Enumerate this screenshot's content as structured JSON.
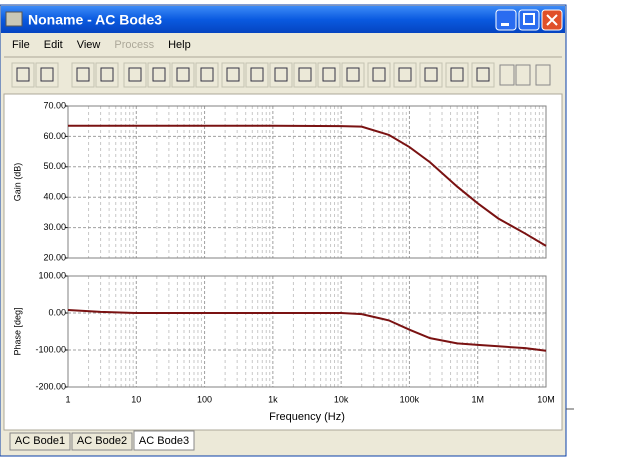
{
  "window": {
    "title": "Noname - AC Bode3"
  },
  "menu": [
    "File",
    "Edit",
    "View",
    "Process",
    "Help"
  ],
  "tabs": [
    "AC Bode1",
    "AC Bode2",
    "AC Bode3"
  ],
  "chart_data": [
    {
      "type": "line",
      "ylabel": "Gain (dB)",
      "xscale": "log",
      "xlim": [
        1,
        10000000
      ],
      "ylim": [
        20,
        70
      ],
      "yticks": [
        {
          "value": 20,
          "label": "20.00"
        },
        {
          "value": 30,
          "label": "30.00"
        },
        {
          "value": 40,
          "label": "40.00"
        },
        {
          "value": 50,
          "label": "50.00"
        },
        {
          "value": 60,
          "label": "60.00"
        },
        {
          "value": 70,
          "label": "70.00"
        }
      ],
      "grid": true,
      "color": "#7a1212",
      "x": [
        1,
        10,
        100,
        1000,
        10000,
        20000,
        50000,
        100000,
        200000,
        500000,
        1000000,
        2000000,
        5000000,
        10000000
      ],
      "values": [
        63.5,
        63.5,
        63.5,
        63.5,
        63.4,
        63.2,
        60.5,
        56.5,
        51.5,
        43.5,
        38,
        33,
        28,
        24
      ]
    },
    {
      "type": "line",
      "ylabel": "Phase [deg]",
      "xlabel": "Frequency (Hz)",
      "xscale": "log",
      "xlim": [
        1,
        10000000
      ],
      "ylim": [
        -200,
        100
      ],
      "xticks": [
        1,
        10,
        100,
        {
          "value": 1000,
          "label": "1k"
        },
        {
          "value": 10000,
          "label": "10k"
        },
        {
          "value": 100000,
          "label": "100k"
        },
        {
          "value": 1000000,
          "label": "1M"
        },
        {
          "value": 10000000,
          "label": "10M"
        }
      ],
      "yticks": [
        {
          "value": -200,
          "label": "-200.00"
        },
        {
          "value": -100,
          "label": "-100.00"
        },
        {
          "value": 0,
          "label": "0.00"
        },
        {
          "value": 100,
          "label": "100.00"
        }
      ],
      "grid": true,
      "color": "#7a1212",
      "x": [
        1,
        3,
        10,
        100,
        1000,
        10000,
        20000,
        50000,
        100000,
        200000,
        500000,
        1000000,
        2000000,
        5000000,
        10000000
      ],
      "values": [
        8,
        3,
        0,
        0,
        0,
        0,
        -3,
        -20,
        -45,
        -68,
        -82,
        -86,
        -90,
        -95,
        -102
      ]
    }
  ]
}
